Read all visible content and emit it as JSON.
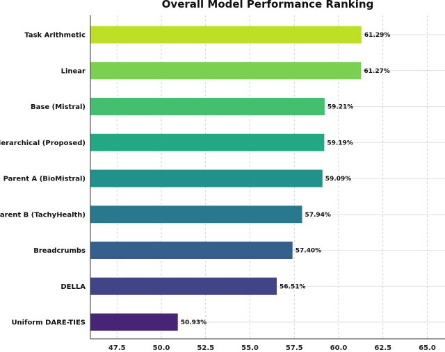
{
  "chart_data": {
    "type": "bar",
    "orientation": "horizontal",
    "title": "Overall Model Performance Ranking",
    "xlabel": "",
    "ylabel": "",
    "xlim": [
      46,
      66
    ],
    "xticks": [
      47.5,
      50.0,
      52.5,
      55.0,
      57.5,
      60.0,
      62.5,
      65.0
    ],
    "xtick_labels": [
      "47.5",
      "50.0",
      "52.5",
      "55.0",
      "57.5",
      "60.0",
      "62.5",
      "65.0"
    ],
    "grid": true,
    "categories": [
      "Task Arithmetic",
      "Linear",
      "Base (Mistral)",
      "Hierarchical (Proposed)",
      "Parent A (BioMistral)",
      "Parent B (TachyHealth)",
      "Breadcrumbs",
      "DELLA",
      "Uniform DARE-TIES"
    ],
    "values": [
      61.29,
      61.27,
      59.21,
      59.19,
      59.09,
      57.94,
      57.4,
      56.51,
      50.93
    ],
    "value_labels": [
      "61.29%",
      "61.27%",
      "59.21%",
      "59.19%",
      "59.09%",
      "57.94%",
      "57.40%",
      "56.51%",
      "50.93%"
    ],
    "colors": [
      "#bddf26",
      "#7ad151",
      "#44bf70",
      "#22a884",
      "#21918c",
      "#2a788e",
      "#355f8d",
      "#414487",
      "#482475"
    ]
  }
}
